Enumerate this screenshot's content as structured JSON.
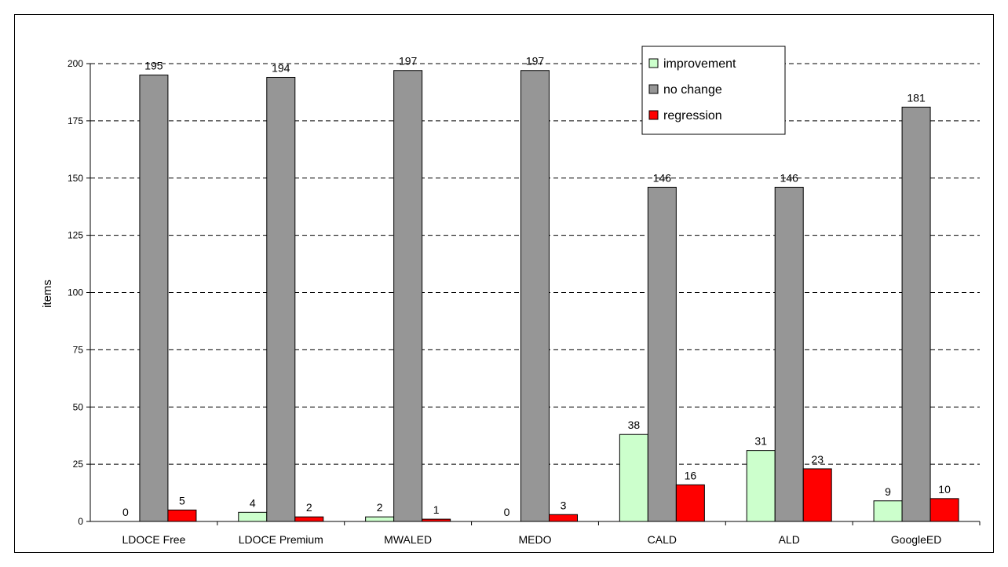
{
  "chart_data": {
    "type": "bar",
    "title": "",
    "xlabel": "",
    "ylabel": "items",
    "ylim": [
      0,
      200
    ],
    "yticks": [
      0,
      25,
      50,
      75,
      100,
      125,
      150,
      175,
      200
    ],
    "grid": true,
    "legend_position": "top-right",
    "categories": [
      "LDOCE Free",
      "LDOCE Premium",
      "MWALED",
      "MEDO",
      "CALD",
      "ALD",
      "GoogleED"
    ],
    "series": [
      {
        "name": "improvement",
        "color": "#ccffcc",
        "values": [
          0,
          4,
          2,
          0,
          38,
          31,
          9
        ]
      },
      {
        "name": "no change",
        "color": "#969696",
        "values": [
          195,
          194,
          197,
          197,
          146,
          146,
          181
        ]
      },
      {
        "name": "regression",
        "color": "#ff0000",
        "values": [
          5,
          2,
          1,
          3,
          16,
          23,
          10
        ]
      }
    ]
  }
}
